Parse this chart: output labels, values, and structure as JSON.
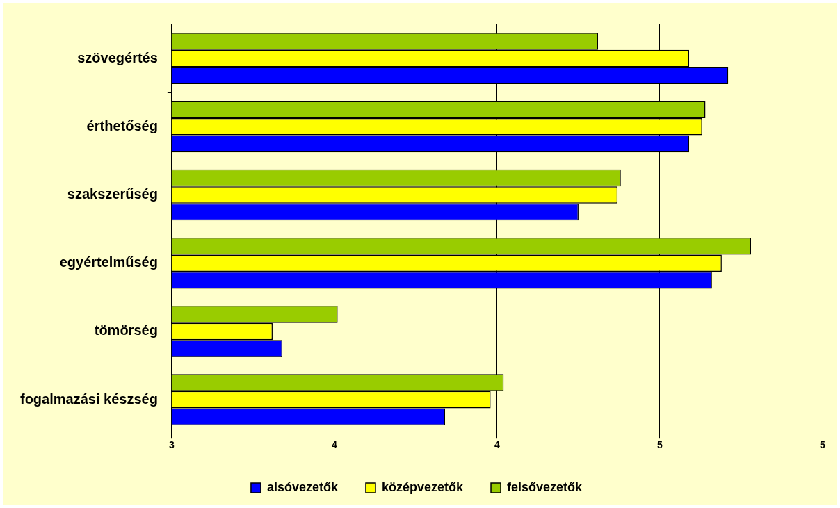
{
  "chart_data": {
    "type": "bar",
    "orientation": "horizontal",
    "categories": [
      "szövegértés",
      "érthetőség",
      "szakszerűség",
      "egyértelműség",
      "tömörség",
      "fogalmazási készség"
    ],
    "series": [
      {
        "name": "alsóvezetők",
        "color": "#0000ff",
        "values": [
          4.71,
          4.59,
          4.25,
          4.66,
          3.34,
          3.84
        ]
      },
      {
        "name": "középvezetők",
        "color": "#ffff00",
        "values": [
          4.59,
          4.63,
          4.37,
          4.69,
          3.31,
          3.98
        ]
      },
      {
        "name": "felsővezetők",
        "color": "#99cc00",
        "values": [
          4.31,
          4.64,
          4.38,
          4.78,
          3.51,
          4.02
        ]
      }
    ],
    "xlim": [
      3,
      5
    ],
    "xticks": [
      3,
      {
        "value": 3.5,
        "label": "4"
      },
      4,
      {
        "value": 4.5,
        "label": "5"
      },
      5
    ],
    "grid": "x",
    "legend": "bottom"
  }
}
